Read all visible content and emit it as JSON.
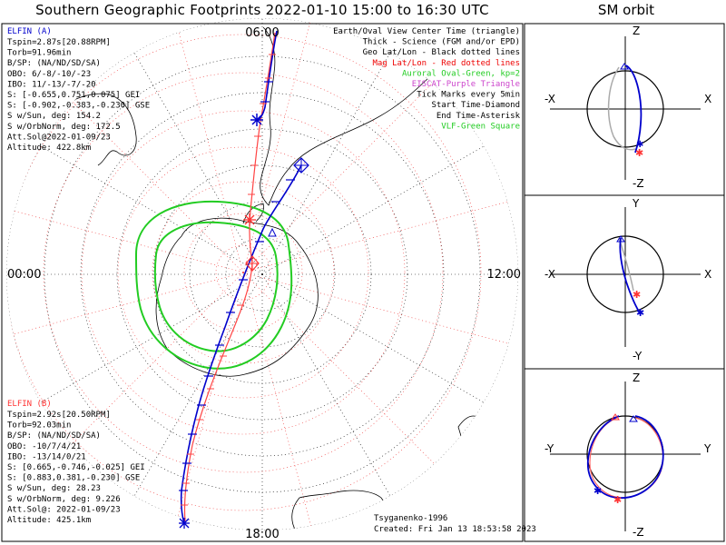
{
  "title": "Southern Geographic Footprints 2022-01-10 15:00 to 16:30 UTC",
  "sm_title": "SM orbit",
  "clock_labels": {
    "top": "06:00",
    "left": "00:00",
    "right": "12:00",
    "bottom": "18:00"
  },
  "elfin_a": {
    "name": "ELFIN (A)",
    "lines": [
      "Tspin=2.87s[20.88RPM]",
      "Torb=91.96min",
      "B/SP: (NA/ND/SD/SA)",
      "OBO: 6/-8/-10/-23",
      "IBO: 11/-13/-7/-20",
      "S: [-0.655,0.751,0.075] GEI",
      "S: [-0.902,-0.383,-0.230] GSE",
      "S w/Sun, deg: 154.2",
      "S w/OrbNorm, deg: 172.5",
      "Att.Sol@2022-01-09/23",
      "Altitude: 422.8km"
    ],
    "color": "#0000cc"
  },
  "elfin_b": {
    "name": "ELFIN (B)",
    "lines": [
      "Tspin=2.92s[20.50RPM]",
      "Torb=92.03min",
      "B/SP: (NA/ND/SD/SA)",
      "OBO: -10/7/4/21",
      "IBO: -13/14/0/21",
      "S: [0.665,-0.746,-0.025] GEI",
      "S: [0.883,0.381,-0.230] GSE",
      "S w/Sun, deg: 28.23",
      "S w/OrbNorm, deg: 9.226",
      "Att.Sol@: 2022-01-09/23",
      "Altitude: 425.1km"
    ],
    "color": "#ff2222"
  },
  "legend": [
    {
      "text": "Earth/Oval View Center Time (triangle)",
      "color": "#000000"
    },
    {
      "text": "Thick - Science (FGM and/or EPD)",
      "color": "#000000"
    },
    {
      "text": "Geo Lat/Lon - Black dotted lines",
      "color": "#000000"
    },
    {
      "text": "Mag Lat/Lon - Red dotted lines",
      "color": "#ee0000"
    },
    {
      "text": "Auroral Oval-Green, kp=2",
      "color": "#22cc22"
    },
    {
      "text": "EISCAT-Purple Triangle",
      "color": "#cc44cc"
    },
    {
      "text": "Tick Marks every 5min",
      "color": "#000000"
    },
    {
      "text": "Start Time-Diamond",
      "color": "#000000"
    },
    {
      "text": "End Time-Asterisk",
      "color": "#000000"
    },
    {
      "text": "VLF-Green Square",
      "color": "#22cc22"
    }
  ],
  "credits": {
    "model": "Tsyganenko-1996",
    "created": "Created: Fri Jan 13 18:53:58 2023"
  },
  "sm_panels": [
    {
      "top": "Z",
      "bottom": "-Z",
      "left": "-X",
      "right": "X"
    },
    {
      "top": "Y",
      "bottom": "-Y",
      "left": "-X",
      "right": "X"
    },
    {
      "top": "Z",
      "bottom": "-Z",
      "left": "-Y",
      "right": "Y"
    }
  ],
  "chart_data": {
    "type": "line",
    "projection": "south-polar",
    "grid": true,
    "tick_interval_min": 5,
    "series": [
      {
        "name": "ELFIN (A)",
        "color": "#0000cc",
        "points": [
          [
            -61,
            265
          ],
          [
            -68,
            272
          ],
          [
            -75,
            280
          ],
          [
            -83,
            305
          ],
          [
            -86,
            20
          ],
          [
            -78,
            70
          ],
          [
            -70,
            82
          ],
          [
            -62,
            88
          ],
          [
            -55,
            92
          ],
          [
            -45,
            95
          ],
          [
            -35,
            98
          ]
        ]
      },
      {
        "name": "ELFIN (B)",
        "color": "#ff3333",
        "points": [
          [
            -38,
            270
          ],
          [
            -48,
            272
          ],
          [
            -58,
            275
          ],
          [
            -68,
            280
          ],
          [
            -78,
            288
          ],
          [
            -86,
            10
          ],
          [
            -76,
            85
          ],
          [
            -64,
            92
          ],
          [
            -55,
            95
          ],
          [
            -45,
            98
          ]
        ]
      }
    ],
    "auroral_oval_kp": 2
  }
}
